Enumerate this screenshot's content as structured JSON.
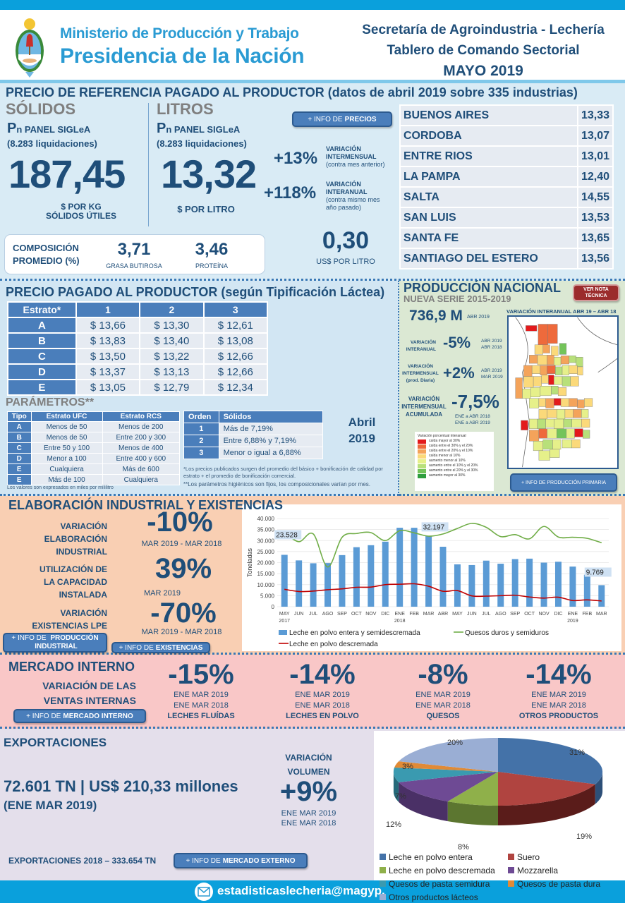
{
  "header": {
    "ministry_line1": "Ministerio de Producción y Trabajo",
    "ministry_line2": "Presidencia de la Nación",
    "secretariat": "Secretaría de Agroindustria - Lechería",
    "dashboard": "Tablero de Comando Sectorial",
    "period": "MAYO 2019",
    "logo_icon": "argentina-coat-of-arms-icon"
  },
  "reference_price": {
    "title": "PRECIO DE REFERENCIA PAGADO AL PRODUCTOR (datos de abril 2019 sobre 335 industrias)",
    "solids": {
      "heading": "SÓLIDOS",
      "panel_p": "P",
      "panel_label": "n PANEL SIGLeA",
      "liquidations": "(8.283 liquidaciones)",
      "value": "187,45",
      "unit_line1": "$ POR KG",
      "unit_line2": "SÓLIDOS ÚTILES"
    },
    "liters": {
      "heading": "LITROS",
      "panel_p": "P",
      "panel_label": "n PANEL SIGLeA",
      "liquidations": "(8.283 liquidaciones)",
      "value": "13,32",
      "unit": "$ POR LITRO"
    },
    "info_button": {
      "prefix": "+ INFO DE",
      "bold": "PRECIOS"
    },
    "monthly_variation": {
      "value": "+13%",
      "label1": "VARIACIÓN",
      "label2": "INTERMENSUAL",
      "note": "(contra mes anterior)"
    },
    "annual_variation": {
      "value": "+118%",
      "label1": "VARIACIÓN",
      "label2": "INTERANUAL",
      "note1": "(contra mismo mes",
      "note2": "año pasado)"
    },
    "usd": {
      "value": "0,30",
      "unit": "US$ POR LITRO"
    },
    "composition": {
      "label1": "COMPOSICIÓN",
      "label2": "PROMEDIO (%)",
      "fat_value": "3,71",
      "fat_label": "GRASA BUTIROSA",
      "protein_value": "3,46",
      "protein_label": "PROTEÍNA"
    },
    "provinces": [
      {
        "name": "BUENOS AIRES",
        "value": "13,33"
      },
      {
        "name": "CORDOBA",
        "value": "13,07"
      },
      {
        "name": "ENTRE RIOS",
        "value": "13,01"
      },
      {
        "name": "LA PAMPA",
        "value": "12,40"
      },
      {
        "name": "SALTA",
        "value": "14,55"
      },
      {
        "name": "SAN LUIS",
        "value": "13,53"
      },
      {
        "name": "SANTA FE",
        "value": "13,65"
      },
      {
        "name": "SANTIAGO DEL ESTERO",
        "value": "13,56"
      }
    ]
  },
  "tipification": {
    "title": "PRECIO PAGADO AL PRODUCTOR (según Tipificación Láctea)",
    "headers": [
      "Estrato*",
      "1",
      "2",
      "3"
    ],
    "rows": [
      [
        "A",
        "$ 13,66",
        "$ 13,30",
        "$ 12,61"
      ],
      [
        "B",
        "$ 13,83",
        "$ 13,40",
        "$ 13,08"
      ],
      [
        "C",
        "$ 13,50",
        "$ 13,22",
        "$ 12,66"
      ],
      [
        "D",
        "$ 13,37",
        "$ 13,13",
        "$ 12,66"
      ],
      [
        "E",
        "$ 13,05",
        "$ 12,79",
        "$ 12,34"
      ]
    ],
    "params_title": "PARÁMETROS**",
    "params_headers": [
      "Tipo",
      "Estrato UFC",
      "Estrato RCS"
    ],
    "params_rows": [
      [
        "A",
        "Menos de 50",
        "Menos de 200"
      ],
      [
        "B",
        "Menos de 50",
        "Entre 200 y 300"
      ],
      [
        "C",
        "Entre 50 y 100",
        "Menos de 400"
      ],
      [
        "D",
        "Menor a 100",
        "Entre 400 y 600"
      ],
      [
        "E",
        "Cualquiera",
        "Más de 600"
      ],
      [
        "E",
        "Más de 100",
        "Cualquiera"
      ]
    ],
    "params_note": "Los valores son expresados en miles por mililitro",
    "order_headers": [
      "Orden",
      "Sólidos"
    ],
    "order_rows": [
      [
        "1",
        "Más de 7,19%"
      ],
      [
        "2",
        "Entre 6,88% y 7,19%"
      ],
      [
        "3",
        "Menor o igual a 6,88%"
      ]
    ],
    "month": "Abril",
    "year": "2019",
    "footnote1": "*Los precios publicados surgen del promedio del básico + bonificación de calidad por estrato + el promedio de bonificación comercial.",
    "footnote2": "**Los parámetros higiénicos son fijos, los composicionales varían por mes."
  },
  "production": {
    "title": "PRODUCCIÓN NACIONAL",
    "subtitle": "NUEVA SERIE 2015-2019",
    "note_button": "VER NOTA TÉCNICA",
    "volume": "736,9 M",
    "volume_period": "ABR 2019",
    "map_title": "VARIACIÓN INTERANUAL ABR 19 – ABR 18",
    "interannual": {
      "label1": "VARIACIÓN",
      "label2": "INTERANUAL",
      "value": "-5%",
      "p1": "ABR 2019",
      "p2": "ABR 2018"
    },
    "intermonthly": {
      "label1": "VARIACIÓN",
      "label2": "INTERMENSUAL",
      "label3": "(prod. Diaria)",
      "value": "+2%",
      "p1": "ABR 2019",
      "p2": "MAR 2019"
    },
    "accumulated": {
      "label1": "VARIACIÓN",
      "label2": "INTERMENSUAL",
      "label3": "ACUMULADA",
      "value": "-7,5%",
      "p1": "ENE a ABR 2018",
      "p2": "ENE a ABR 2019"
    },
    "legend_title": "Variación porcentual interanual",
    "legend": [
      {
        "label": "caída mayor al 30%",
        "color": "#e31a1c"
      },
      {
        "label": "caída entre el 30% y el 20%",
        "color": "#ee6a3c"
      },
      {
        "label": "caída entre el 20% y el 10%",
        "color": "#f4a35a"
      },
      {
        "label": "caída menor al 10%",
        "color": "#fbd97a"
      },
      {
        "label": "aumento menor al 10%",
        "color": "#e6f08a"
      },
      {
        "label": "aumento entre el 10% y el 20%",
        "color": "#b8e07a"
      },
      {
        "label": "aumento entre el 20% y el 30%",
        "color": "#74c45a"
      },
      {
        "label": "aumento mayor al 30%",
        "color": "#2f9e3e"
      }
    ],
    "info_button": "+ INFO DE PRODUCCIÓN PRIMARIA"
  },
  "industrial": {
    "title": "ELABORACIÓN INDUSTRIAL Y EXISTENCIAS",
    "elaboration": {
      "label": [
        "VARIACIÓN",
        "ELABORACIÓN",
        "INDUSTRIAL"
      ],
      "value": "-10%",
      "period": "MAR 2019 -  MAR 2018"
    },
    "capacity": {
      "label": [
        "UTILIZACIÓN DE",
        "LA CAPACIDAD",
        "INSTALADA"
      ],
      "value": "39%",
      "period": "MAR 2019"
    },
    "stocks": {
      "label": [
        "VARIACIÓN",
        "EXISTENCIAS LPE"
      ],
      "value": "-70%",
      "period": "MAR 2019 -  MAR 2018"
    },
    "btn_production": {
      "prefix": "+ INFO DE",
      "bold1": "PRODUCCIÓN",
      "bold2": "INDUSTRIAL"
    },
    "btn_stocks": {
      "prefix": "+ INFO DE",
      "bold": "EXISTENCIAS"
    }
  },
  "chart_data": {
    "type": "bar",
    "title": "",
    "xlabel": "",
    "ylabel": "Toneladas",
    "ylim": [
      0,
      40000
    ],
    "yticks": [
      "0",
      "5.000",
      "10.000",
      "15.000",
      "20.000",
      "25.000",
      "30.000",
      "35.000",
      "40.000"
    ],
    "categories": [
      "MAY",
      "JUN",
      "JUL",
      "AGO",
      "SEP",
      "OCT",
      "NOV",
      "DIC",
      "ENE",
      "FEB",
      "MAR",
      "ABR",
      "MAY",
      "JUN",
      "JUL",
      "AGO",
      "SEP",
      "OCT",
      "NOV",
      "DIC",
      "ENE",
      "FEB",
      "MAR"
    ],
    "year_labels": [
      {
        "index": 0,
        "label": "2017"
      },
      {
        "index": 8,
        "label": "2018"
      },
      {
        "index": 20,
        "label": "2019"
      }
    ],
    "series": [
      {
        "name": "Leche en polvo entera y semidescremada",
        "kind": "bar",
        "color": "#5b9bd5",
        "values": [
          23528,
          21000,
          19700,
          19800,
          23400,
          27000,
          27900,
          29500,
          35800,
          35800,
          32197,
          27200,
          19200,
          18900,
          20900,
          19500,
          21600,
          21800,
          20000,
          20400,
          18200,
          14500,
          9769
        ]
      },
      {
        "name": "Quesos duros y semiduros",
        "kind": "line",
        "color": "#70ad47",
        "values": [
          33700,
          29500,
          33000,
          18000,
          31500,
          33200,
          33600,
          30000,
          34500,
          33500,
          32000,
          33000,
          35500,
          37800,
          36000,
          31800,
          32700,
          30800,
          36400,
          31600,
          31500,
          31000,
          29000
        ]
      },
      {
        "name": "Leche en polvo descremada",
        "kind": "line",
        "color": "#c00000",
        "values": [
          7900,
          6900,
          7100,
          7700,
          8100,
          8800,
          8900,
          10000,
          10200,
          10400,
          9300,
          7000,
          7300,
          4900,
          4800,
          5000,
          5200,
          4400,
          3900,
          4300,
          2800,
          3100,
          2600
        ]
      }
    ],
    "data_labels": [
      {
        "index": 0,
        "label": "23.528"
      },
      {
        "index": 10,
        "label": "32.197"
      },
      {
        "index": 22,
        "label": "9.769"
      }
    ],
    "legend_position": "bottom"
  },
  "domestic": {
    "title": "MERCADO INTERNO",
    "subtitle1": "VARIACIÓN DE LAS",
    "subtitle2": "VENTAS INTERNAS",
    "button": {
      "prefix": "+ INFO DE",
      "bold": "MERCADO INTERNO"
    },
    "items": [
      {
        "value": "-15%",
        "p1": "ENE MAR 2019",
        "p2": "ENE MAR 2018",
        "category": "LECHES FLUÍDAS"
      },
      {
        "value": "-14%",
        "p1": "ENE MAR 2019",
        "p2": "ENE MAR 2018",
        "category": "LECHES EN POLVO"
      },
      {
        "value": "-8%",
        "p1": "ENE MAR 2019",
        "p2": "ENE MAR 2018",
        "category": "QUESOS"
      },
      {
        "value": "-14%",
        "p1": "ENE MAR 2019",
        "p2": "ENE MAR 2018",
        "category": "OTROS PRODUCTOS"
      }
    ]
  },
  "exports": {
    "title": "EXPORTACIONES",
    "summary": "72.601 TN | US$ 210,33 millones",
    "summary_period": "(ENE MAR 2019)",
    "variation_label1": "VARIACIÓN",
    "variation_label2": "VOLUMEN",
    "variation_value": "+9%",
    "p1": "ENE MAR 2019",
    "p2": "ENE MAR 2018",
    "total_2018": "EXPORTACIONES 2018 – 333.654 TN",
    "button": {
      "prefix": "+ INFO DE",
      "bold": "MERCADO EXTERNO"
    },
    "pie": {
      "type": "pie",
      "slices": [
        {
          "name": "Leche en polvo entera",
          "value": 31,
          "label": "31%",
          "color": "#4472a8",
          "dark": "#2d4f78"
        },
        {
          "name": "Suero",
          "value": 19,
          "label": "19%",
          "color": "#b04440",
          "dark": "#5a1c1a"
        },
        {
          "name": "Leche en polvo descremada",
          "value": 8,
          "label": "8%",
          "color": "#8fb04a",
          "dark": "#5c7630"
        },
        {
          "name": "Mozzarella",
          "value": 12,
          "label": "12%",
          "color": "#6e4a94",
          "dark": "#4a3066"
        },
        {
          "name": "Quesos de pasta semidura",
          "value": 7,
          "label": "7%",
          "color": "#3a9ab0",
          "dark": "#266a7a"
        },
        {
          "name": "Quesos de pasta dura",
          "value": 3,
          "label": "3%",
          "color": "#e08a36",
          "dark": "#9a5c22"
        },
        {
          "name": "Otros productos lácteos",
          "value": 20,
          "label": "20%",
          "color": "#9aaed4",
          "dark": "#6a7ea4"
        }
      ]
    }
  },
  "footer": {
    "email": "estadisticaslecheria@magyp."
  }
}
